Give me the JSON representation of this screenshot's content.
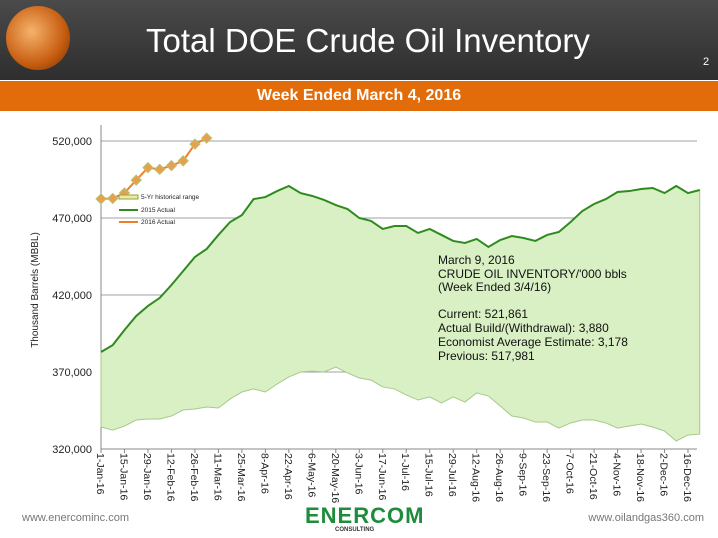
{
  "header": {
    "title": "Total DOE Crude Oil Inventory",
    "page_number": "2",
    "subtitle": "Week Ended March 4, 2016"
  },
  "footer": {
    "left": "www.enercominc.com",
    "right": "www.oilandgas360.com",
    "logo_text": "ENERCOM",
    "logo_sub": "CONSULTING"
  },
  "colors": {
    "header_bg": "#3a3a3a",
    "band": "#e36c0a",
    "range_fill": "#d9f0c4",
    "line_2015": "#2e8b1e",
    "line_2016": "#f07f2a",
    "marker_2016": "#b5c46a"
  },
  "chart_data": {
    "type": "line",
    "ylabel": "Thousand Barrels (MBBL)",
    "ylim": [
      320000,
      520000
    ],
    "yticks": [
      "320,000",
      "370,000",
      "420,000",
      "470,000",
      "520,000"
    ],
    "ytick_values": [
      320000,
      370000,
      420000,
      470000,
      520000
    ],
    "xtick_labels": [
      "1-Jan-16",
      "15-Jan-16",
      "29-Jan-16",
      "12-Feb-16",
      "26-Feb-16",
      "11-Mar-16",
      "25-Mar-16",
      "8-Apr-16",
      "22-Apr-16",
      "6-May-16",
      "20-May-16",
      "3-Jun-16",
      "17-Jun-16",
      "1-Jul-16",
      "15-Jul-16",
      "29-Jul-16",
      "12-Aug-16",
      "26-Aug-16",
      "9-Sep-16",
      "23-Sep-16",
      "7-Oct-16",
      "21-Oct-16",
      "4-Nov-16",
      "18-Nov-16",
      "2-Dec-16",
      "16-Dec-16"
    ],
    "grid": "horizontal",
    "legend_placement": "upper-left",
    "legend": [
      "5-Yr historical range",
      "2015 Actual",
      "2016 Actual"
    ],
    "series": [
      {
        "name": "5-Yr historical range",
        "type": "area",
        "lower": [
          334300,
          332300,
          334900,
          338800,
          339500,
          339500,
          341400,
          345300,
          346000,
          347300,
          346600,
          352500,
          357000,
          359000,
          357000,
          362200,
          366800,
          370000,
          370600,
          370000,
          373200,
          369400,
          366100,
          364800,
          360300,
          359000,
          355100,
          351800,
          353800,
          349900,
          353800,
          350500,
          356400,
          354400,
          347900,
          341400,
          340100,
          337500,
          337500,
          333600,
          336900,
          338800,
          338800,
          336900,
          333600,
          334900,
          336200,
          334300,
          331700,
          325200,
          329100,
          329700
        ]
      },
      {
        "name": "2015 Actual",
        "type": "line",
        "values": [
          383000,
          387500,
          397300,
          406400,
          412900,
          418100,
          426500,
          435600,
          444700,
          449900,
          459000,
          467400,
          471900,
          482300,
          483600,
          487500,
          490800,
          486200,
          484300,
          481700,
          478400,
          475800,
          470000,
          468100,
          462900,
          464800,
          464800,
          460300,
          462900,
          459000,
          455100,
          453800,
          456400,
          451200,
          455700,
          458300,
          457000,
          455100,
          459000,
          460900,
          467400,
          474500,
          479100,
          482300,
          486900,
          487500,
          488800,
          489500,
          486200,
          490800,
          486200,
          488200
        ]
      },
      {
        "name": "2016 Actual",
        "type": "line",
        "values": [
          482400,
          482700,
          486300,
          494600,
          502700,
          501600,
          504000,
          507100,
          517981,
          521861
        ]
      }
    ],
    "annotation": {
      "line1": "March 9, 2016",
      "line2": "CRUDE OIL INVENTORY/'000 bbls",
      "line3": "(Week Ended 3/4/16)",
      "current": "Current: 521,861",
      "build": "Actual Build/(Withdrawal): 3,880",
      "estimate": "Economist Average Estimate: 3,178",
      "previous": "Previous: 517,981"
    }
  }
}
